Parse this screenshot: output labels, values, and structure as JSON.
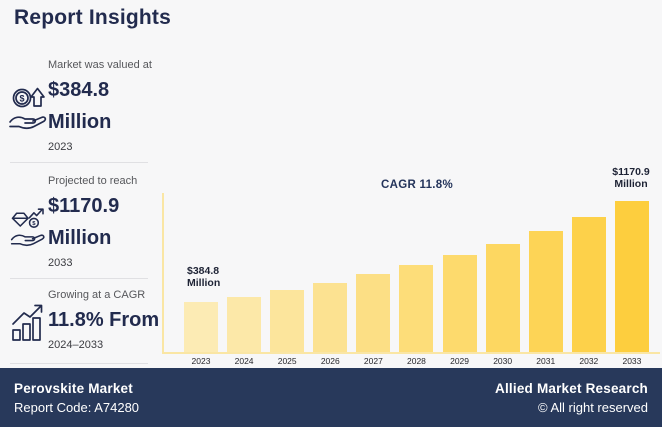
{
  "title": "Report Insights",
  "colors": {
    "background": "#F7F7F8",
    "navy_text": "#222B4E",
    "label_gray": "#56575B",
    "footer_bg": "#28395B",
    "footer_text": "#FFFFFF"
  },
  "stats": [
    {
      "icon": "money-growth-hand-icon",
      "label": "Market was valued at",
      "value_line1": "$384.8",
      "value_line2": "Million",
      "period": "2023"
    },
    {
      "icon": "diamond-hand-icon",
      "label": "Projected to reach",
      "value_line1": "$1170.9",
      "value_line2": "Million",
      "period": "2033"
    },
    {
      "icon": "growth-chart-icon",
      "label": "Growing at a CAGR",
      "value_line1": "11.8% From",
      "value_line2": "",
      "period": "2024–2033"
    }
  ],
  "chart_data": {
    "type": "bar",
    "title": "",
    "xlabel": "",
    "ylabel": "",
    "unit": "USD Million",
    "categories": [
      "2023",
      "2024",
      "2025",
      "2026",
      "2027",
      "2028",
      "2029",
      "2030",
      "2031",
      "2032",
      "2033"
    ],
    "values": [
      384.8,
      430.2,
      481.0,
      537.7,
      601.2,
      672.1,
      751.4,
      840.1,
      939.2,
      1050.0,
      1170.9
    ],
    "ylim": [
      0,
      1170.9
    ],
    "grid": false,
    "legend": null,
    "bar_color_start": "#FCEBB4",
    "bar_color_end": "#FDCE3E",
    "axis_color": "#FAE6A4",
    "annotations": {
      "cagr": "CAGR 11.8%",
      "first_bar": {
        "line1": "$384.8",
        "line2": "Million"
      },
      "last_bar": {
        "line1": "$1170.9",
        "line2": "Million"
      }
    }
  },
  "footer": {
    "market_name": "Perovskite Market",
    "report_code": "Report Code: A74280",
    "brand": "Allied Market Research",
    "copyright": "© All right reserved"
  }
}
